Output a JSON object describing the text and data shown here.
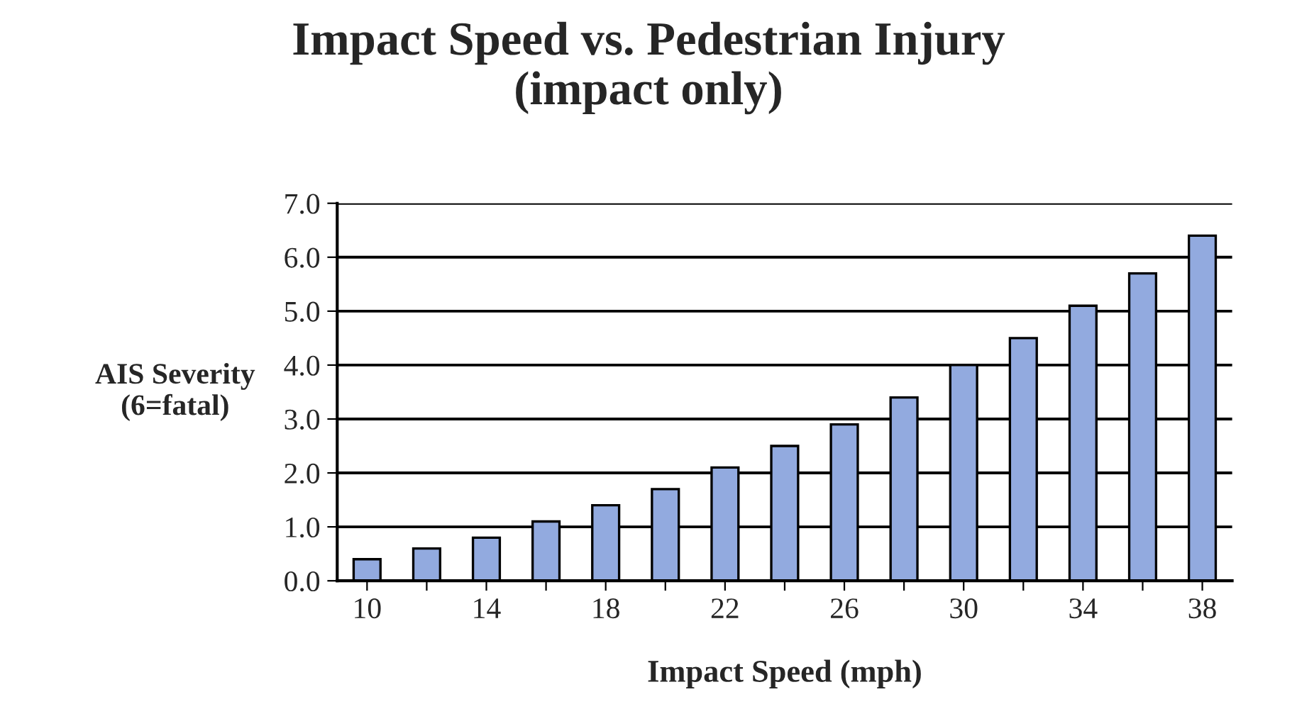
{
  "chart_data": {
    "type": "bar",
    "title": "Impact Speed vs. Pedestrian Injury\n(impact only)",
    "xlabel": "Impact Speed (mph)",
    "ylabel": "AIS Severity\n(6=fatal)",
    "categories": [
      "10",
      null,
      "14",
      null,
      "18",
      null,
      "22",
      null,
      "26",
      null,
      "30",
      null,
      "34",
      null,
      "38"
    ],
    "values": [
      0.4,
      0.6,
      0.8,
      1.1,
      1.4,
      1.7,
      2.1,
      2.5,
      2.9,
      3.4,
      4.0,
      4.5,
      5.1,
      5.7,
      6.4
    ],
    "color": "#92aadf",
    "ylim": [
      0,
      7
    ],
    "yticks": [
      {
        "value": 0,
        "label": "0.0"
      },
      {
        "value": 1,
        "label": "1.0"
      },
      {
        "value": 2,
        "label": "2.0"
      },
      {
        "value": 3,
        "label": "3.0"
      },
      {
        "value": 4,
        "label": "4.0"
      },
      {
        "value": 5,
        "label": "5.0"
      },
      {
        "value": 6,
        "label": "6.0"
      },
      {
        "value": 7,
        "label": "7.0"
      }
    ],
    "grid": "y"
  }
}
